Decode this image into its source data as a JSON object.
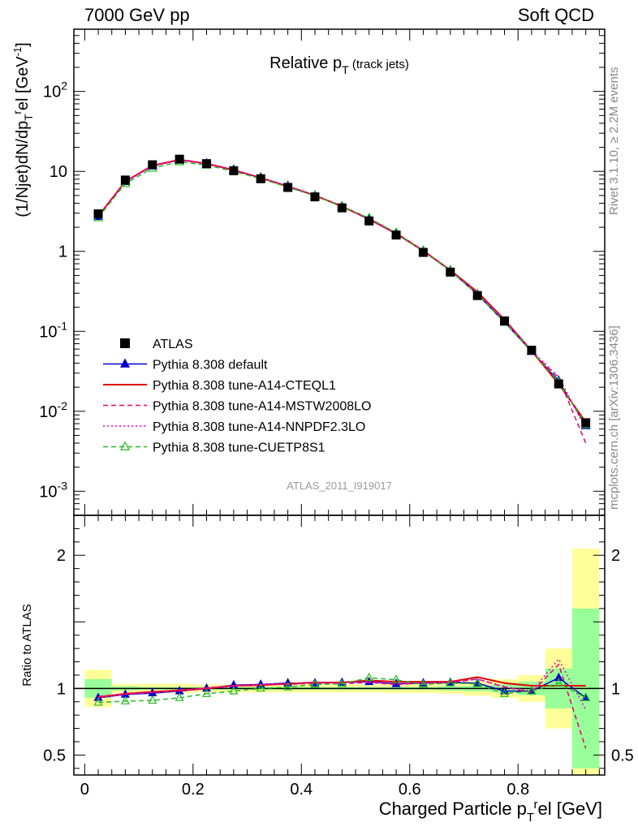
{
  "header": {
    "left": "7000 GeV pp",
    "right": "Soft QCD"
  },
  "side_labels": {
    "rivet": "Rivet 3.1.10, ≥ 2.2M events",
    "mcplots": "mcplots.cern.ch [arXiv:1306.3436]"
  },
  "chart_data": [
    {
      "type": "line",
      "panel": "main",
      "title": "Relative p_T (track jets)",
      "watermark": "ATLAS_2011_I919017",
      "ylabel": "(1/Njet)dN/dp_T^rel [GeV^-1]",
      "yscale": "log",
      "ylim": [
        0.0005,
        600
      ],
      "xlim": [
        -0.02,
        0.96
      ],
      "ytick_labels": [
        "10^-3",
        "10^-2",
        "10^-1",
        "1",
        "10",
        "10^2"
      ],
      "legend_position": "lower-left",
      "x": [
        0.025,
        0.075,
        0.125,
        0.175,
        0.225,
        0.275,
        0.325,
        0.375,
        0.425,
        0.475,
        0.525,
        0.575,
        0.625,
        0.675,
        0.725,
        0.775,
        0.825,
        0.875,
        0.925
      ],
      "series": [
        {
          "name": "ATLAS",
          "color": "#000000",
          "marker": "square",
          "values": [
            2.95,
            7.8,
            12.1,
            14.2,
            12.5,
            10.2,
            8.1,
            6.3,
            4.8,
            3.5,
            2.4,
            1.6,
            0.97,
            0.55,
            0.28,
            0.135,
            0.058,
            0.022,
            0.0072
          ]
        },
        {
          "name": "Pythia 8.308 default",
          "color": "#0000cc",
          "marker": "triangle-filled",
          "values": [
            2.74,
            7.45,
            11.7,
            13.95,
            12.5,
            10.45,
            8.35,
            6.55,
            5.0,
            3.65,
            2.52,
            1.66,
            1.01,
            0.575,
            0.29,
            0.13,
            0.056,
            0.024,
            0.0066
          ]
        },
        {
          "name": "Pythia 8.308 tune-A14-CTEQL1",
          "color": "#e00000",
          "marker": "none",
          "values": [
            2.76,
            7.5,
            11.8,
            14.0,
            12.5,
            10.4,
            8.3,
            6.5,
            5.0,
            3.65,
            2.55,
            1.68,
            1.02,
            0.58,
            0.31,
            0.14,
            0.057,
            0.022,
            0.0073
          ]
        },
        {
          "name": "Pythia 8.308 tune-A14-MSTW2008LO",
          "color": "#e8006e",
          "marker": "none",
          "values": [
            2.77,
            7.5,
            11.7,
            13.9,
            12.6,
            10.4,
            8.3,
            6.5,
            5.0,
            3.62,
            2.5,
            1.65,
            1.01,
            0.575,
            0.3,
            0.136,
            0.056,
            0.026,
            0.004
          ]
        },
        {
          "name": "Pythia 8.308 tune-A14-NNPDF2.3LO",
          "color": "#ee00cc",
          "marker": "none",
          "values": [
            2.75,
            7.45,
            11.8,
            14.0,
            12.6,
            10.4,
            8.35,
            6.5,
            5.0,
            3.65,
            2.52,
            1.66,
            1.01,
            0.575,
            0.3,
            0.137,
            0.057,
            0.027,
            0.006
          ]
        },
        {
          "name": "Pythia 8.308 tune-CUETP8S1",
          "color": "#22bb22",
          "marker": "triangle-open",
          "values": [
            2.64,
            7.05,
            11.0,
            13.2,
            12.0,
            10.0,
            8.1,
            6.35,
            4.95,
            3.62,
            2.6,
            1.7,
            1.0,
            0.57,
            0.29,
            0.13,
            0.057,
            0.023,
            0.0068
          ]
        }
      ]
    },
    {
      "type": "line",
      "panel": "ratio",
      "ylabel": "Ratio to ATLAS",
      "xlabel": "Charged Particle p_T^rel [GeV]",
      "ylim": [
        0.35,
        2.3
      ],
      "xlim": [
        -0.02,
        0.96
      ],
      "ytick_labels": [
        "0.5",
        "1",
        "2"
      ],
      "xtick_labels": [
        "0",
        "0.2",
        "0.4",
        "0.6",
        "0.8"
      ],
      "xtick_values": [
        0,
        0.2,
        0.4,
        0.6,
        0.8
      ],
      "band_colors": {
        "stat": "#99ff99",
        "total": "#ffff99"
      },
      "bands": {
        "x_edges": [
          0.0,
          0.05,
          0.1,
          0.15,
          0.2,
          0.25,
          0.3,
          0.35,
          0.4,
          0.45,
          0.5,
          0.55,
          0.6,
          0.65,
          0.7,
          0.75,
          0.8,
          0.85,
          0.9,
          0.95
        ],
        "stat_half_width": [
          0.07,
          0.015,
          0.01,
          0.01,
          0.01,
          0.01,
          0.01,
          0.01,
          0.01,
          0.01,
          0.01,
          0.01,
          0.01,
          0.015,
          0.02,
          0.03,
          0.05,
          0.15,
          0.6
        ],
        "total_half_width": [
          0.14,
          0.035,
          0.035,
          0.035,
          0.03,
          0.03,
          0.03,
          0.03,
          0.03,
          0.03,
          0.03,
          0.035,
          0.035,
          0.04,
          0.055,
          0.07,
          0.1,
          0.3,
          1.05
        ]
      },
      "x": [
        0.025,
        0.075,
        0.125,
        0.175,
        0.225,
        0.275,
        0.325,
        0.375,
        0.425,
        0.475,
        0.525,
        0.575,
        0.625,
        0.675,
        0.725,
        0.775,
        0.825,
        0.875,
        0.925
      ],
      "series": [
        {
          "name": "Pythia 8.308 default",
          "color": "#0000cc",
          "marker": "triangle-filled",
          "values": [
            0.93,
            0.955,
            0.965,
            0.98,
            1.0,
            1.025,
            1.03,
            1.04,
            1.04,
            1.045,
            1.05,
            1.035,
            1.04,
            1.045,
            1.04,
            0.98,
            0.98,
            1.08,
            0.93
          ]
        },
        {
          "name": "Pythia 8.308 tune-A14-CTEQL1",
          "color": "#e00000",
          "marker": "none",
          "values": [
            0.935,
            0.96,
            0.975,
            0.985,
            1.0,
            1.02,
            1.025,
            1.035,
            1.045,
            1.045,
            1.06,
            1.05,
            1.05,
            1.05,
            1.085,
            1.04,
            1.02,
            1.02,
            1.02
          ]
        },
        {
          "name": "Pythia 8.308 tune-A14-MSTW2008LO",
          "color": "#e8006e",
          "marker": "none",
          "values": [
            0.94,
            0.96,
            0.97,
            0.98,
            1.005,
            1.02,
            1.03,
            1.03,
            1.04,
            1.035,
            1.045,
            1.03,
            1.04,
            1.045,
            1.07,
            1.01,
            0.97,
            1.18,
            0.55
          ]
        },
        {
          "name": "Pythia 8.308 tune-A14-NNPDF2.3LO",
          "color": "#ee00cc",
          "marker": "none",
          "values": [
            0.93,
            0.955,
            0.97,
            0.99,
            1.0,
            1.02,
            1.03,
            1.035,
            1.045,
            1.045,
            1.05,
            1.04,
            1.04,
            1.05,
            1.07,
            1.015,
            0.98,
            1.22,
            0.84
          ]
        },
        {
          "name": "Pythia 8.308 tune-CUETP8S1",
          "color": "#22bb22",
          "marker": "triangle-open",
          "values": [
            0.895,
            0.905,
            0.91,
            0.93,
            0.96,
            0.98,
            1.0,
            1.01,
            1.03,
            1.035,
            1.08,
            1.065,
            1.03,
            1.04,
            1.035,
            0.96,
            0.98,
            1.04,
            0.93
          ]
        }
      ]
    }
  ]
}
